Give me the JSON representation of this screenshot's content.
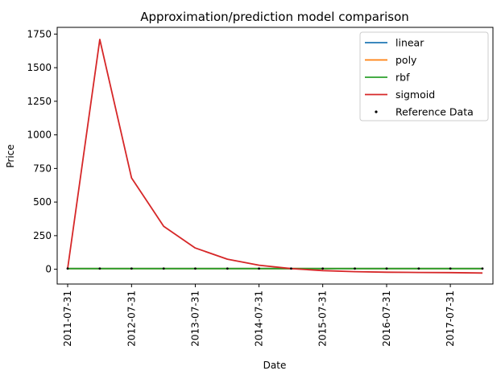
{
  "chart_data": {
    "type": "line",
    "title": "Approximation/prediction model comparison",
    "xlabel": "Date",
    "ylabel": "Price",
    "x_ticks": [
      "2011-07-31",
      "2012-07-31",
      "2013-07-31",
      "2014-07-31",
      "2015-07-31",
      "2016-07-31",
      "2017-07-31"
    ],
    "y_ticks": [
      0,
      250,
      500,
      750,
      1000,
      1250,
      1500,
      1750
    ],
    "ylim": [
      -110,
      1800
    ],
    "x": [
      "2011-07-31",
      "2012-01-31",
      "2012-07-31",
      "2013-01-31",
      "2013-07-31",
      "2014-01-31",
      "2014-07-31",
      "2015-01-31",
      "2015-07-31",
      "2016-01-31",
      "2016-07-31",
      "2017-01-31",
      "2017-07-31",
      "2018-01-31"
    ],
    "series": [
      {
        "name": "linear",
        "color": "#1f77b4",
        "values": [
          5,
          5,
          5,
          5,
          5,
          5,
          5,
          5,
          5,
          5,
          5,
          5,
          5,
          5
        ]
      },
      {
        "name": "poly",
        "color": "#ff7f0e",
        "values": [
          5,
          5,
          5,
          5,
          5,
          5,
          5,
          5,
          5,
          5,
          5,
          5,
          5,
          5
        ]
      },
      {
        "name": "rbf",
        "color": "#2ca02c",
        "values": [
          5,
          5,
          5,
          5,
          5,
          5,
          5,
          5,
          5,
          5,
          5,
          5,
          5,
          5
        ]
      },
      {
        "name": "sigmoid",
        "color": "#d62728",
        "values": [
          5,
          1710,
          680,
          320,
          158,
          75,
          30,
          5,
          -10,
          -18,
          -22,
          -24,
          -25,
          -28
        ]
      }
    ],
    "reference": {
      "name": "Reference Data",
      "color": "#000000",
      "values": [
        5,
        5,
        5,
        5,
        5,
        5,
        5,
        5,
        5,
        5,
        5,
        5,
        5,
        5
      ]
    },
    "legend_position": "top-right",
    "grid": false
  }
}
